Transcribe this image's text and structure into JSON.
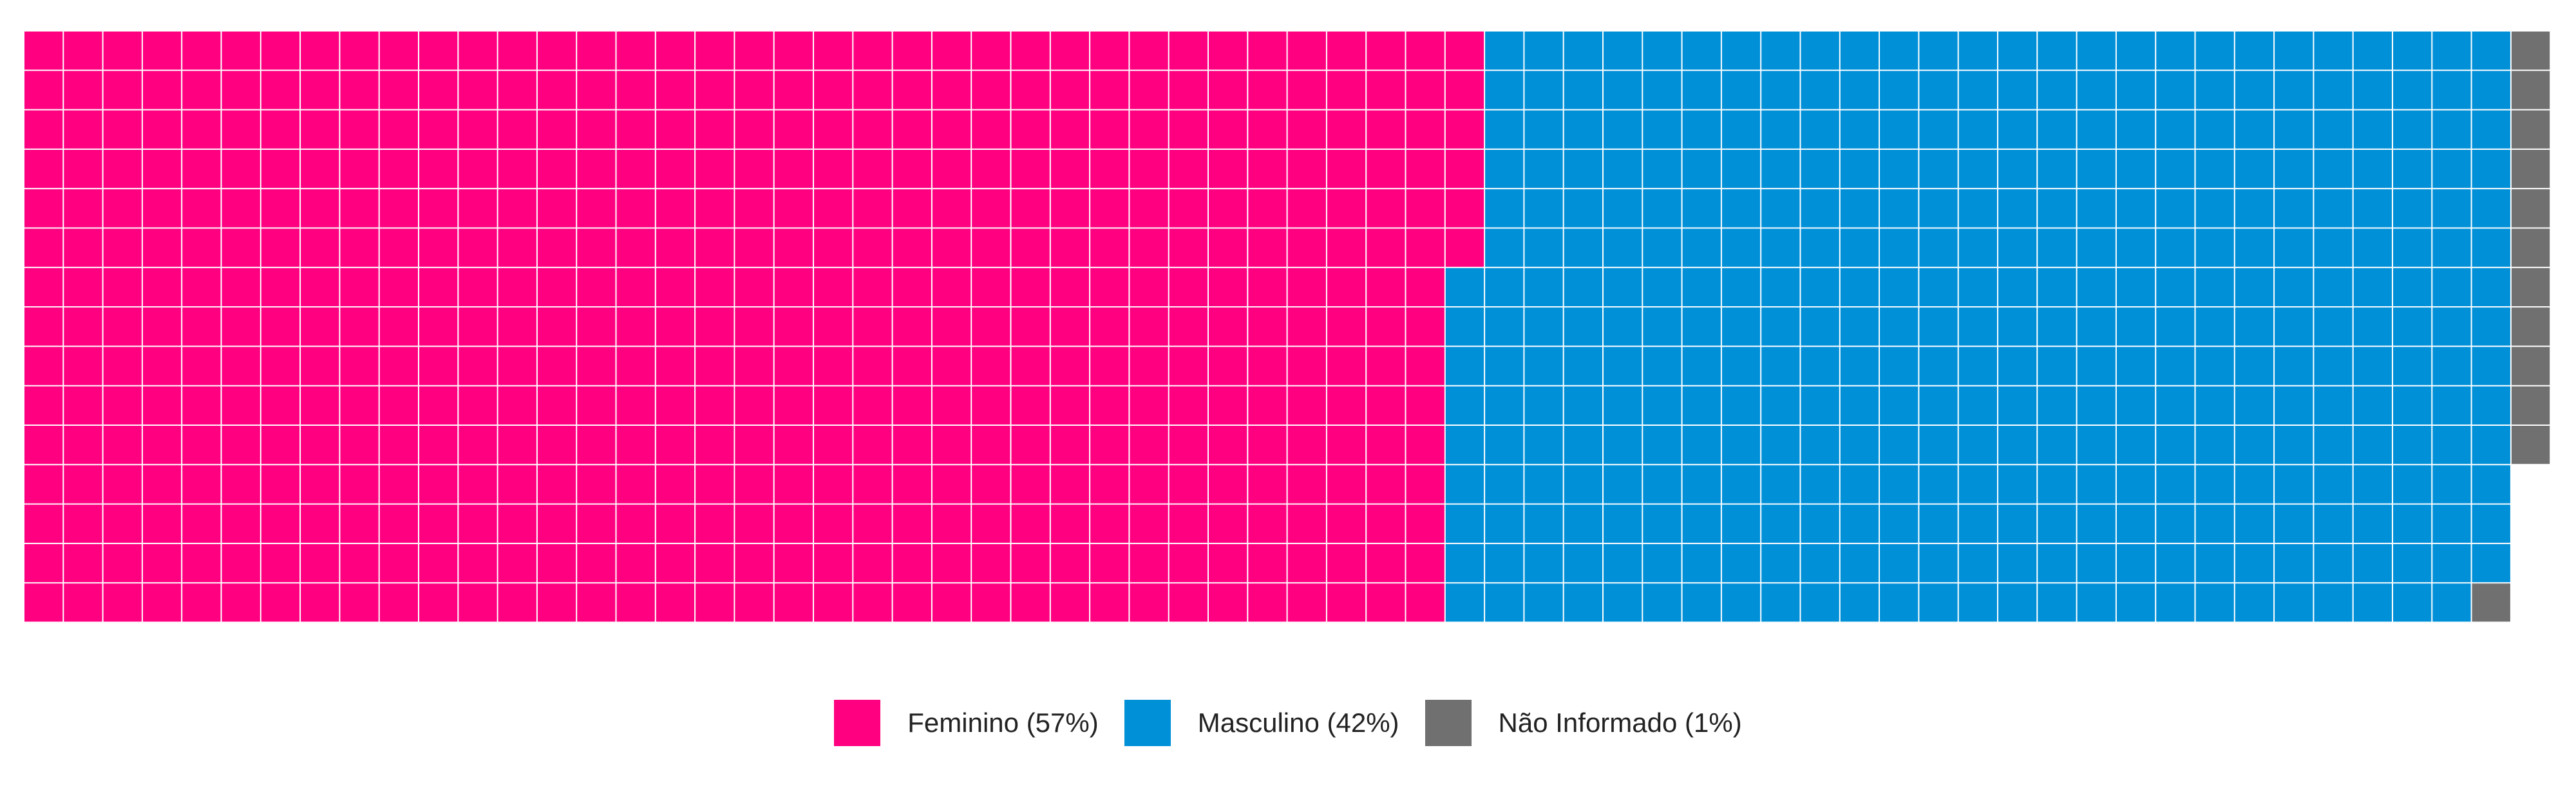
{
  "chart_data": {
    "type": "waffle",
    "rows": 15,
    "columns": 64,
    "fill_order": "column-wise, top to bottom, left to right",
    "series": [
      {
        "name": "Feminino",
        "percent": 57,
        "cells": 546,
        "color": "#FF0080",
        "legend_label": "Feminino (57%)"
      },
      {
        "name": "Masculino",
        "percent": 42,
        "cells": 398,
        "color": "#0090D8",
        "legend_label": "Masculino (42%)"
      },
      {
        "name": "Não Informado",
        "percent": 1,
        "cells": 12,
        "color": "#707070",
        "legend_label": "Não Informado (1%)"
      }
    ],
    "legend_position": "bottom-center",
    "background": "#FFFFFF",
    "cell_border_color": "#FFFFFF"
  }
}
